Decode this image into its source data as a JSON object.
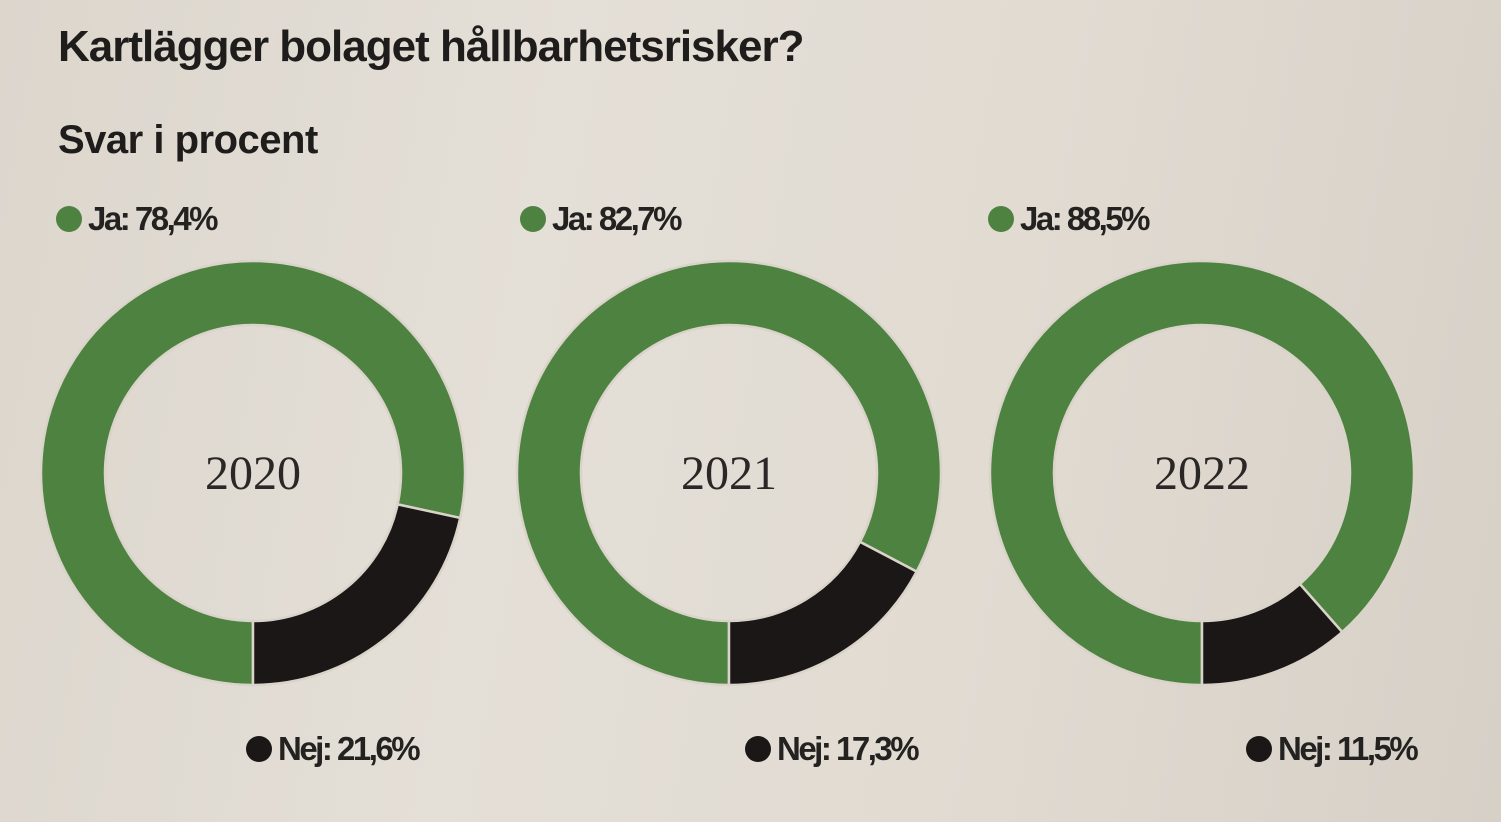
{
  "title": "Kartlägger bolaget hållbarhetsrisker?",
  "subtitle": "Svar i procent",
  "chart_data": {
    "type": "pie",
    "style": "donut",
    "title": "Kartlägger bolaget hållbarhetsrisker?",
    "subtitle": "Svar i procent",
    "colors": {
      "Ja": "#4e8240",
      "Nej": "#1a1716"
    },
    "charts": [
      {
        "year": "2020",
        "slices": [
          {
            "name": "Ja",
            "value": 78.4,
            "label": "Ja: 78,4%"
          },
          {
            "name": "Nej",
            "value": 21.6,
            "label": "Nej: 21,6%"
          }
        ]
      },
      {
        "year": "2021",
        "slices": [
          {
            "name": "Ja",
            "value": 82.7,
            "label": "Ja: 82,7%"
          },
          {
            "name": "Nej",
            "value": 17.3,
            "label": "Nej: 17,3%"
          }
        ]
      },
      {
        "year": "2022",
        "slices": [
          {
            "name": "Ja",
            "value": 88.5,
            "label": "Ja: 88,5%"
          },
          {
            "name": "Nej",
            "value": 11.5,
            "label": "Nej: 11,5%"
          }
        ]
      }
    ]
  }
}
